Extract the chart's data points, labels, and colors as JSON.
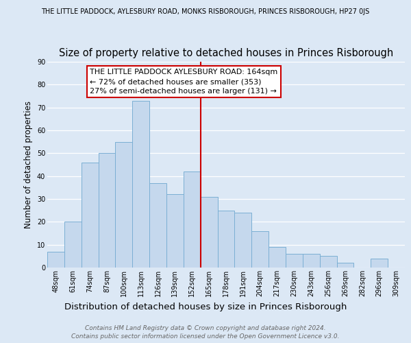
{
  "title": "Size of property relative to detached houses in Princes Risborough",
  "suptitle": "THE LITTLE PADDOCK, AYLESBURY ROAD, MONKS RISBOROUGH, PRINCES RISBOROUGH, HP27 0JS",
  "xlabel": "Distribution of detached houses by size in Princes Risborough",
  "ylabel": "Number of detached properties",
  "bar_labels": [
    "48sqm",
    "61sqm",
    "74sqm",
    "87sqm",
    "100sqm",
    "113sqm",
    "126sqm",
    "139sqm",
    "152sqm",
    "165sqm",
    "178sqm",
    "191sqm",
    "204sqm",
    "217sqm",
    "230sqm",
    "243sqm",
    "256sqm",
    "269sqm",
    "282sqm",
    "296sqm",
    "309sqm"
  ],
  "bar_heights": [
    7,
    20,
    46,
    50,
    55,
    73,
    37,
    32,
    42,
    31,
    25,
    24,
    16,
    9,
    6,
    6,
    5,
    2,
    0,
    4,
    0
  ],
  "bar_color": "#c5d8ed",
  "bar_edge_color": "#7bafd4",
  "vline_color": "#cc0000",
  "annotation_text": "THE LITTLE PADDOCK AYLESBURY ROAD: 164sqm\n← 72% of detached houses are smaller (353)\n27% of semi-detached houses are larger (131) →",
  "annotation_fontsize": 8,
  "ylim": [
    0,
    90
  ],
  "yticks": [
    0,
    10,
    20,
    30,
    40,
    50,
    60,
    70,
    80,
    90
  ],
  "footer_text": "Contains HM Land Registry data © Crown copyright and database right 2024.\nContains public sector information licensed under the Open Government Licence v3.0.",
  "background_color": "#dce8f5",
  "grid_color": "#ffffff",
  "title_fontsize": 10.5,
  "suptitle_fontsize": 7,
  "xlabel_fontsize": 9.5,
  "ylabel_fontsize": 8.5,
  "footer_fontsize": 6.5,
  "tick_fontsize": 7
}
